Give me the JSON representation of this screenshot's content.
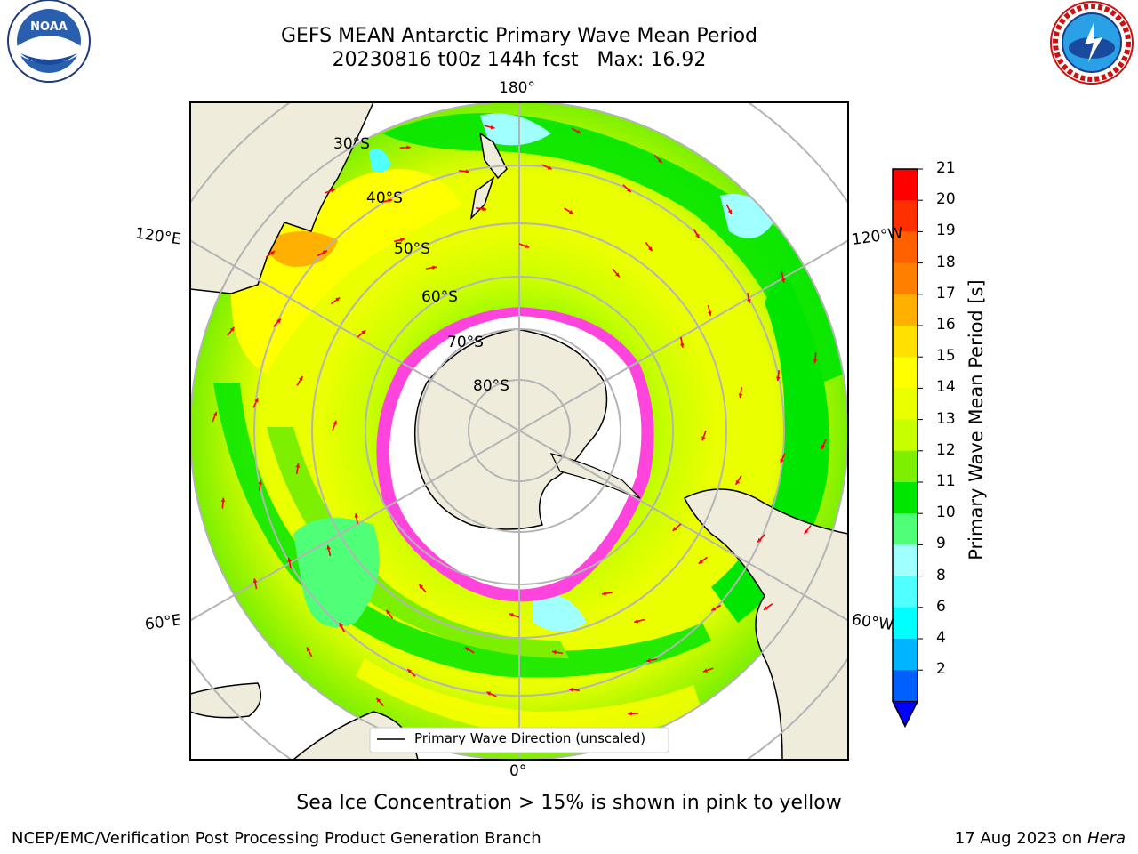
{
  "title": {
    "line1": "GEFS MEAN Antarctic Primary Wave Mean Period",
    "line2": "20230816 t00z 144h fcst   Max: 16.92"
  },
  "logos": {
    "left": {
      "text": "NOAA",
      "ring_text": "NATIONAL OCEANIC AND ATMOSPHERIC ADMINISTRATION · U.S. DEPARTMENT OF COMMERCE"
    },
    "right": {
      "ring_text": "NATIONAL WEATHER SERVICE"
    }
  },
  "map": {
    "projection": "south-polar-stereographic",
    "longitude_labels": {
      "top": "180°",
      "left_upper": "120°E",
      "right_upper": "120°W",
      "left_lower": "60°E",
      "right_lower": "60°W",
      "bottom": "0°"
    },
    "latitude_labels": [
      "30°S",
      "40°S",
      "50°S",
      "60°S",
      "70°S",
      "80°S"
    ],
    "legend_label": "Primary Wave Direction (unscaled)",
    "colors": {
      "land": "#efecdc",
      "ocean_base": "#7cf03a",
      "sea_ice": "#ff44dd",
      "arrow": "#ff0000",
      "grid": "#b4b4b4"
    }
  },
  "colorbar": {
    "title": "Primary Wave Mean Period [s]",
    "ticks": [
      "21",
      "20",
      "19",
      "18",
      "17",
      "16",
      "15",
      "14",
      "13",
      "12",
      "11",
      "10",
      "9",
      "8",
      "6",
      "4",
      "2"
    ],
    "colors_top_to_bottom": [
      "#ff0000",
      "#ff3000",
      "#ff6000",
      "#ff8000",
      "#ffb000",
      "#ffe000",
      "#ffff00",
      "#eaff00",
      "#c8ff00",
      "#7cf000",
      "#00e600",
      "#50ff78",
      "#a0ffff",
      "#50ffff",
      "#00ffff",
      "#00b4ff",
      "#0060ff"
    ],
    "extend_color": "#0000ff"
  },
  "footer": {
    "note": "Sea Ice Concentration > 15% is shown in pink to yellow",
    "left": "NCEP/EMC/Verification Post Processing Product Generation Branch",
    "right_date": "17 Aug 2023 on ",
    "right_host": "Hera"
  }
}
